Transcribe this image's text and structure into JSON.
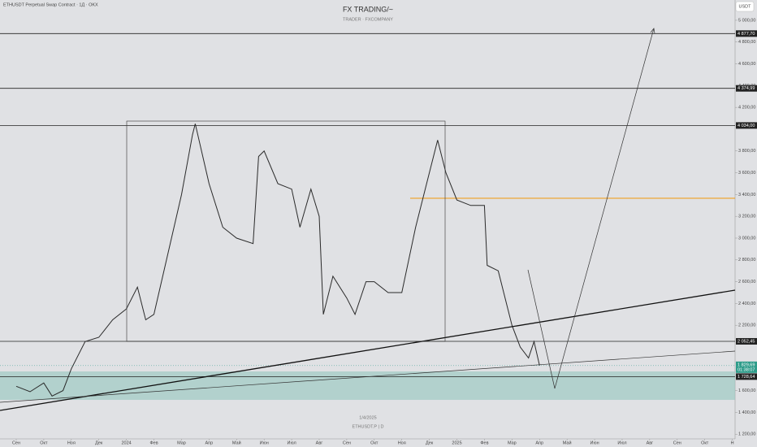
{
  "header": {
    "symbol": "ETHUSDT Perpetual Swap Contract · 1Д · OKX",
    "title": "FX TRADING/~",
    "subtitle": "TRADER · FXCOMPANY",
    "currency": "USDT"
  },
  "watermark": {
    "date": "1/4/2025",
    "ticker": "ETHUSDT.P | D"
  },
  "chart_data": {
    "type": "line",
    "xlim": [
      -0.59,
      26.1
    ],
    "xticks": [
      {
        "value": 0,
        "label": "Сен"
      },
      {
        "value": 1,
        "label": "Окт"
      },
      {
        "value": 2,
        "label": "Ноя"
      },
      {
        "value": 3,
        "label": "Дек"
      },
      {
        "value": 4,
        "label": "2024"
      },
      {
        "value": 5,
        "label": "Фев"
      },
      {
        "value": 6,
        "label": "Мар"
      },
      {
        "value": 7,
        "label": "Апр"
      },
      {
        "value": 8,
        "label": "Май"
      },
      {
        "value": 9,
        "label": "Июн"
      },
      {
        "value": 10,
        "label": "Июл"
      },
      {
        "value": 11,
        "label": "Авг"
      },
      {
        "value": 12,
        "label": "Сен"
      },
      {
        "value": 13,
        "label": "Окт"
      },
      {
        "value": 14,
        "label": "Ноя"
      },
      {
        "value": 15,
        "label": "Дек"
      },
      {
        "value": 16,
        "label": "2025"
      },
      {
        "value": 17,
        "label": "Фев"
      },
      {
        "value": 18,
        "label": "Мар"
      },
      {
        "value": 19,
        "label": "Апр"
      },
      {
        "value": 20,
        "label": "Май"
      },
      {
        "value": 21,
        "label": "Июн"
      },
      {
        "value": 22,
        "label": "Июл"
      },
      {
        "value": 23,
        "label": "Авг"
      },
      {
        "value": 24,
        "label": "Сен"
      },
      {
        "value": 25,
        "label": "Окт"
      },
      {
        "value": 26,
        "label": "Н"
      }
    ],
    "ylim": [
      1157,
      5186
    ],
    "yticks": [
      {
        "value": 1200,
        "label": "1 200,00"
      },
      {
        "value": 1400,
        "label": "1 400,00"
      },
      {
        "value": 1600,
        "label": "1 600,00"
      },
      {
        "value": 2200,
        "label": "2 200,00"
      },
      {
        "value": 2400,
        "label": "2 400,00"
      },
      {
        "value": 2600,
        "label": "2 600,00"
      },
      {
        "value": 2800,
        "label": "2 800,00"
      },
      {
        "value": 3000,
        "label": "3 000,00"
      },
      {
        "value": 3200,
        "label": "3 200,00"
      },
      {
        "value": 3400,
        "label": "3 400,00"
      },
      {
        "value": 3600,
        "label": "3 600,00"
      },
      {
        "value": 3800,
        "label": "3 800,00"
      },
      {
        "value": 4200,
        "label": "4 200,00"
      },
      {
        "value": 4400,
        "label": "4 400,00"
      },
      {
        "value": 4600,
        "label": "4 600,00"
      },
      {
        "value": 4800,
        "label": "4 800,00"
      },
      {
        "value": 5000,
        "label": "5 000,00"
      }
    ],
    "series": [
      {
        "name": "ETHUSDT",
        "color": "#2a2a2a",
        "x": [
          0,
          0.5,
          1,
          1.3,
          1.7,
          2,
          2.5,
          3,
          3.5,
          4,
          4.4,
          4.7,
          5,
          5.5,
          6,
          6.4,
          6.5,
          7,
          7.5,
          8,
          8.6,
          8.8,
          9,
          9.5,
          10,
          10.3,
          10.7,
          11,
          11.15,
          11.5,
          12,
          12.3,
          12.7,
          13,
          13.5,
          14,
          14.5,
          15,
          15.3,
          15.6,
          16,
          16.5,
          17,
          17.1,
          17.5,
          18,
          18.3,
          18.6,
          18.8,
          19
        ],
        "values": [
          1640,
          1590,
          1670,
          1550,
          1600,
          1800,
          2050,
          2090,
          2250,
          2350,
          2550,
          2250,
          2300,
          2850,
          3400,
          3950,
          4050,
          3500,
          3100,
          3000,
          2950,
          3750,
          3800,
          3500,
          3450,
          3100,
          3450,
          3200,
          2300,
          2650,
          2450,
          2300,
          2600,
          2600,
          2500,
          2500,
          3100,
          3600,
          3900,
          3600,
          3350,
          3300,
          3300,
          2750,
          2700,
          2200,
          2000,
          1900,
          2050,
          1830
        ]
      }
    ],
    "levels": [
      {
        "value": 4877.7,
        "label": "4 877,70"
      },
      {
        "value": 4374.99,
        "label": "4 374,99"
      },
      {
        "value": 4034,
        "label": "4 034,00"
      },
      {
        "value": 2052.45,
        "label": "2 052,45"
      },
      {
        "value": 1728.64,
        "label": "1 728,64"
      }
    ],
    "level_color": "#222222",
    "resistance": 3366,
    "resistance_color": "#f0a020",
    "current": {
      "value": 1829.69,
      "label": "1 829,69",
      "countdown": "01:38:07",
      "color": "#2e9c8a"
    },
    "zone": [
      1515,
      1776
    ],
    "zone_color": "#9ecbc3"
  }
}
